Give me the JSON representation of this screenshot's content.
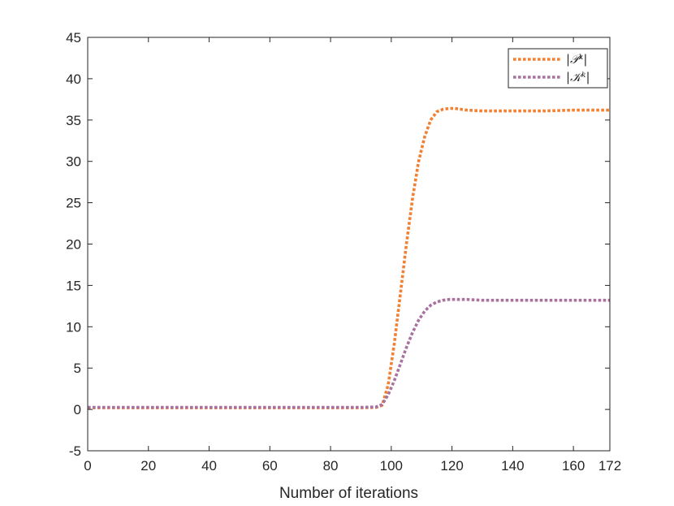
{
  "chart_data": {
    "type": "line",
    "title": "",
    "xlabel": "Number of iterations",
    "ylabel": "",
    "xlim": [
      0,
      172
    ],
    "ylim": [
      -5,
      45
    ],
    "xticks": [
      0,
      20,
      40,
      60,
      80,
      100,
      120,
      140,
      160,
      172
    ],
    "yticks": [
      -5,
      0,
      5,
      10,
      15,
      20,
      25,
      30,
      35,
      40,
      45
    ],
    "grid": false,
    "legend_position": "top-right",
    "series": [
      {
        "name": "|𝒫ᵏ|",
        "color": "#f28032",
        "line_style": "dotted",
        "x": [
          0,
          20,
          40,
          60,
          80,
          90,
          95,
          97,
          99,
          101,
          103,
          105,
          107,
          109,
          111,
          113,
          115,
          117,
          119,
          121,
          123,
          125,
          130,
          135,
          140,
          150,
          160,
          172
        ],
        "y": [
          0.2,
          0.2,
          0.2,
          0.2,
          0.2,
          0.2,
          0.25,
          0.5,
          3,
          8,
          14,
          20,
          25.5,
          30,
          33,
          35,
          36,
          36.3,
          36.4,
          36.4,
          36.3,
          36.2,
          36.1,
          36.1,
          36.1,
          36.1,
          36.2,
          36.2
        ]
      },
      {
        "name": "|𝒦ᵏ|",
        "color": "#a8729e",
        "line_style": "dotted",
        "x": [
          0,
          20,
          40,
          60,
          80,
          90,
          95,
          97,
          99,
          101,
          103,
          105,
          107,
          109,
          111,
          113,
          115,
          117,
          119,
          121,
          125,
          130,
          140,
          150,
          160,
          172
        ],
        "y": [
          0.25,
          0.25,
          0.25,
          0.25,
          0.25,
          0.25,
          0.3,
          0.6,
          1.8,
          3.5,
          5.5,
          7.5,
          9.3,
          10.8,
          11.9,
          12.6,
          13,
          13.2,
          13.3,
          13.3,
          13.3,
          13.2,
          13.2,
          13.2,
          13.2,
          13.2
        ]
      }
    ]
  }
}
